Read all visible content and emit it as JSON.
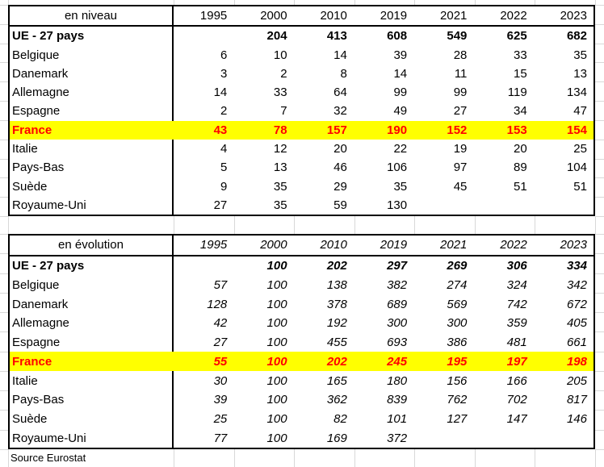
{
  "sheet": {
    "source_note": "Source Eurostat",
    "colors": {
      "highlight_row_background": "#ffff00",
      "highlight_row_text": "#ff0000",
      "error_indicator_green": "#008000",
      "table_border": "#000000",
      "gridline": "#d8d8d8"
    }
  },
  "years": [
    "1995",
    "2000",
    "2010",
    "2019",
    "2021",
    "2022",
    "2023"
  ],
  "tables": [
    {
      "title": "en niveau",
      "rows": [
        {
          "label": "UE - 27 pays",
          "bold": true,
          "highlight": false,
          "values": [
            "",
            "204",
            "413",
            "608",
            "549",
            "625",
            "682"
          ]
        },
        {
          "label": "Belgique",
          "bold": false,
          "highlight": false,
          "values": [
            "6",
            "10",
            "14",
            "39",
            "28",
            "33",
            "35"
          ]
        },
        {
          "label": "Danemark",
          "bold": false,
          "highlight": false,
          "values": [
            "3",
            "2",
            "8",
            "14",
            "11",
            "15",
            "13"
          ]
        },
        {
          "label": "Allemagne",
          "bold": false,
          "highlight": false,
          "values": [
            "14",
            "33",
            "64",
            "99",
            "99",
            "119",
            "134"
          ]
        },
        {
          "label": "Espagne",
          "bold": false,
          "highlight": false,
          "values": [
            "2",
            "7",
            "32",
            "49",
            "27",
            "34",
            "47"
          ]
        },
        {
          "label": "France",
          "bold": true,
          "highlight": true,
          "values": [
            "43",
            "78",
            "157",
            "190",
            "152",
            "153",
            "154"
          ]
        },
        {
          "label": "Italie",
          "bold": false,
          "highlight": false,
          "values": [
            "4",
            "12",
            "20",
            "22",
            "19",
            "20",
            "25"
          ]
        },
        {
          "label": "Pays-Bas",
          "bold": false,
          "highlight": false,
          "values": [
            "5",
            "13",
            "46",
            "106",
            "97",
            "89",
            "104"
          ]
        },
        {
          "label": "Suède",
          "bold": false,
          "highlight": false,
          "values": [
            "9",
            "35",
            "29",
            "35",
            "45",
            "51",
            "51"
          ]
        },
        {
          "label": "Royaume-Uni",
          "bold": false,
          "highlight": false,
          "values": [
            "27",
            "35",
            "59",
            "130",
            "",
            "",
            ""
          ]
        }
      ]
    },
    {
      "title": "en évolution",
      "rows": [
        {
          "label": "UE - 27 pays",
          "bold": true,
          "highlight": false,
          "values": [
            "",
            "100",
            "202",
            "297",
            "269",
            "306",
            "334"
          ]
        },
        {
          "label": "Belgique",
          "bold": false,
          "highlight": false,
          "values": [
            "57",
            "100",
            "138",
            "382",
            "274",
            "324",
            "342"
          ]
        },
        {
          "label": "Danemark",
          "bold": false,
          "highlight": false,
          "values": [
            "128",
            "100",
            "378",
            "689",
            "569",
            "742",
            "672"
          ]
        },
        {
          "label": "Allemagne",
          "bold": false,
          "highlight": false,
          "values": [
            "42",
            "100",
            "192",
            "300",
            "300",
            "359",
            "405"
          ]
        },
        {
          "label": "Espagne",
          "bold": false,
          "highlight": false,
          "values": [
            "27",
            "100",
            "455",
            "693",
            "386",
            "481",
            "661"
          ]
        },
        {
          "label": "France",
          "bold": true,
          "highlight": true,
          "values": [
            "55",
            "100",
            "202",
            "245",
            "195",
            "197",
            "198"
          ]
        },
        {
          "label": "Italie",
          "bold": false,
          "highlight": false,
          "values": [
            "30",
            "100",
            "165",
            "180",
            "156",
            "166",
            "205"
          ]
        },
        {
          "label": "Pays-Bas",
          "bold": false,
          "highlight": false,
          "values": [
            "39",
            "100",
            "362",
            "839",
            "762",
            "702",
            "817"
          ]
        },
        {
          "label": "Suède",
          "bold": false,
          "highlight": false,
          "values": [
            "25",
            "100",
            "82",
            "101",
            "127",
            "147",
            "146"
          ]
        },
        {
          "label": "Royaume-Uni",
          "bold": false,
          "highlight": false,
          "values": [
            "77",
            "100",
            "169",
            "372",
            "",
            "",
            ""
          ]
        }
      ]
    }
  ]
}
